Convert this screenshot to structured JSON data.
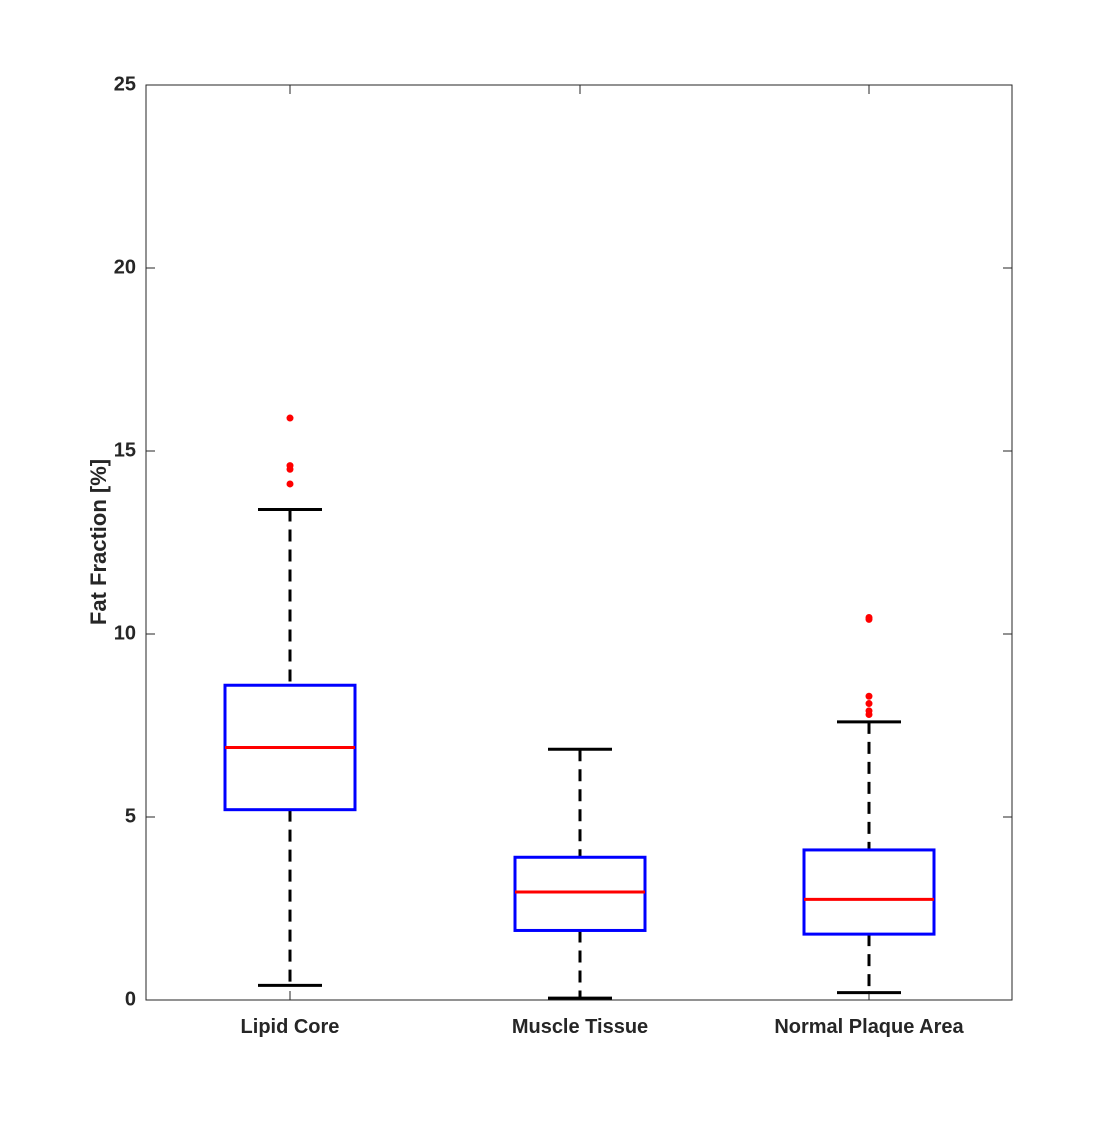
{
  "chart_data": {
    "type": "box",
    "title": "",
    "xlabel": "",
    "ylabel": "Fat Fraction [%]",
    "ylim": [
      0,
      25
    ],
    "yticks": [
      0,
      5,
      10,
      15,
      20,
      25
    ],
    "ytick_labels": [
      "0",
      "5",
      "10",
      "15",
      "20",
      "25"
    ],
    "grid": false,
    "categories": [
      "Lipid Core",
      "Muscle Tissue",
      "Normal Plaque Area"
    ],
    "boxes": [
      {
        "name": "Lipid Core",
        "whisker_low": 0.4,
        "q1": 5.2,
        "median": 6.9,
        "q3": 8.6,
        "whisker_high": 13.4,
        "outliers": [
          14.1,
          14.5,
          14.6,
          15.9
        ]
      },
      {
        "name": "Muscle Tissue",
        "whisker_low": 0.05,
        "q1": 1.9,
        "median": 2.95,
        "q3": 3.9,
        "whisker_high": 6.85,
        "outliers": []
      },
      {
        "name": "Normal Plaque Area",
        "whisker_low": 0.2,
        "q1": 1.8,
        "median": 2.75,
        "q3": 4.1,
        "whisker_high": 7.6,
        "outliers": [
          7.8,
          7.9,
          8.1,
          8.3,
          10.4,
          10.45
        ]
      }
    ],
    "colors": {
      "box": "#0000ff",
      "median": "#ff0000",
      "whisker": "#000000",
      "outlier": "#ff0000",
      "axis": "#262626"
    }
  }
}
